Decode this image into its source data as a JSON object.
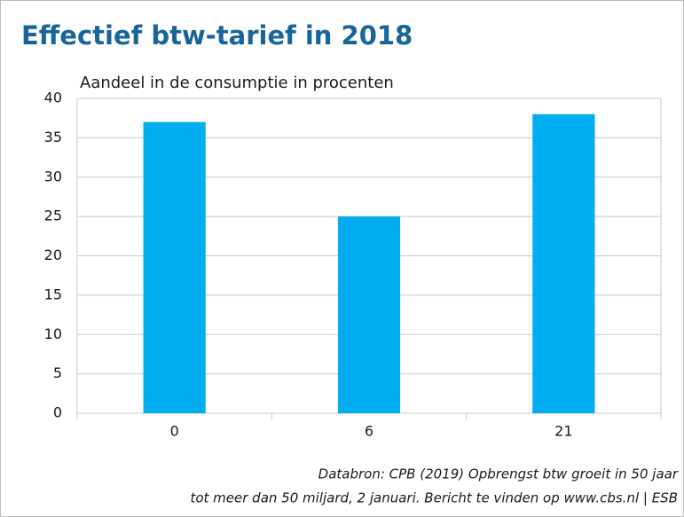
{
  "chart_data": {
    "type": "bar",
    "title": "Effectief btw-tarief in 2018",
    "subtitle": "Aandeel in de consumptie in procenten",
    "categories": [
      "0",
      "6",
      "21"
    ],
    "values": [
      37,
      25,
      38
    ],
    "color": "#00aeef",
    "ylim": [
      0,
      40
    ],
    "yticks": [
      0,
      5,
      10,
      15,
      20,
      25,
      30,
      35,
      40
    ],
    "grid": true,
    "source": [
      "Databron: CPB (2019) Opbrengst btw groeit in 50 jaar",
      "tot meer dan 50 miljard, 2 januari. Bericht te vinden op www.cbs.nl | ESB"
    ]
  }
}
